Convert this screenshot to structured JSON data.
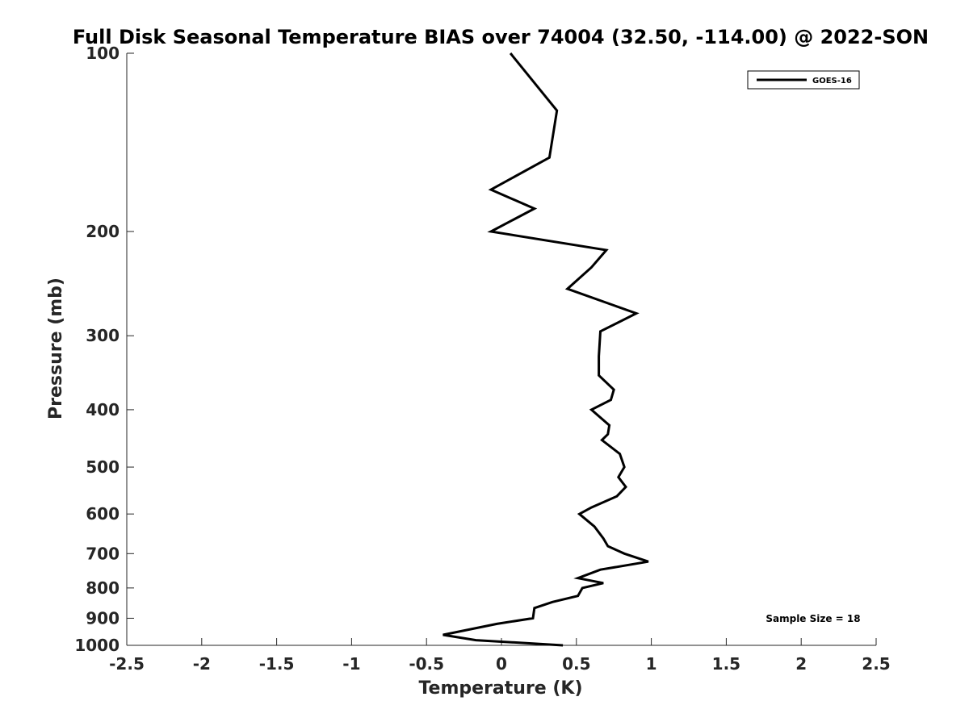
{
  "chart_data": {
    "type": "line",
    "title": "Full Disk Seasonal Temperature BIAS over 74004 (32.50, -114.00) @ 2022-SON",
    "xlabel": "Temperature (K)",
    "ylabel": "Pressure (mb)",
    "xlim": [
      -2.5,
      2.5
    ],
    "ylim": [
      100,
      1000
    ],
    "y_scale": "log",
    "y_reversed": true,
    "x_ticks": [
      "-2.5",
      "-2",
      "-1.5",
      "-1",
      "-0.5",
      "0",
      "0.5",
      "1",
      "1.5",
      "2",
      "2.5"
    ],
    "x_tick_values": [
      -2.5,
      -2,
      -1.5,
      -1,
      -0.5,
      0,
      0.5,
      1,
      1.5,
      2,
      2.5
    ],
    "y_ticks": [
      "100",
      "200",
      "300",
      "400",
      "500",
      "600",
      "700",
      "800",
      "900",
      "1000"
    ],
    "y_tick_values": [
      100,
      200,
      300,
      400,
      500,
      600,
      700,
      800,
      900,
      1000
    ],
    "grid": false,
    "legend_position": "top-right",
    "annotation": "Sample Size = 18",
    "series": [
      {
        "name": "GOES-16",
        "color": "#000000",
        "points": [
          {
            "x": 0.06,
            "p": 100
          },
          {
            "x": 0.37,
            "p": 125
          },
          {
            "x": 0.32,
            "p": 150
          },
          {
            "x": -0.07,
            "p": 170
          },
          {
            "x": 0.22,
            "p": 183
          },
          {
            "x": -0.07,
            "p": 200
          },
          {
            "x": 0.7,
            "p": 215
          },
          {
            "x": 0.6,
            "p": 230
          },
          {
            "x": 0.44,
            "p": 250
          },
          {
            "x": 0.9,
            "p": 275
          },
          {
            "x": 0.66,
            "p": 295
          },
          {
            "x": 0.65,
            "p": 325
          },
          {
            "x": 0.65,
            "p": 350
          },
          {
            "x": 0.75,
            "p": 370
          },
          {
            "x": 0.73,
            "p": 385
          },
          {
            "x": 0.6,
            "p": 400
          },
          {
            "x": 0.72,
            "p": 425
          },
          {
            "x": 0.71,
            "p": 440
          },
          {
            "x": 0.67,
            "p": 450
          },
          {
            "x": 0.79,
            "p": 475
          },
          {
            "x": 0.82,
            "p": 500
          },
          {
            "x": 0.78,
            "p": 520
          },
          {
            "x": 0.83,
            "p": 540
          },
          {
            "x": 0.77,
            "p": 560
          },
          {
            "x": 0.6,
            "p": 585
          },
          {
            "x": 0.52,
            "p": 600
          },
          {
            "x": 0.62,
            "p": 630
          },
          {
            "x": 0.68,
            "p": 660
          },
          {
            "x": 0.71,
            "p": 680
          },
          {
            "x": 0.82,
            "p": 700
          },
          {
            "x": 0.98,
            "p": 722
          },
          {
            "x": 0.66,
            "p": 745
          },
          {
            "x": 0.51,
            "p": 770
          },
          {
            "x": 0.68,
            "p": 785
          },
          {
            "x": 0.54,
            "p": 800
          },
          {
            "x": 0.51,
            "p": 825
          },
          {
            "x": 0.34,
            "p": 845
          },
          {
            "x": 0.22,
            "p": 865
          },
          {
            "x": 0.21,
            "p": 900
          },
          {
            "x": -0.03,
            "p": 920
          },
          {
            "x": -0.39,
            "p": 960
          },
          {
            "x": -0.17,
            "p": 980
          },
          {
            "x": 0.41,
            "p": 1000
          }
        ]
      }
    ]
  }
}
